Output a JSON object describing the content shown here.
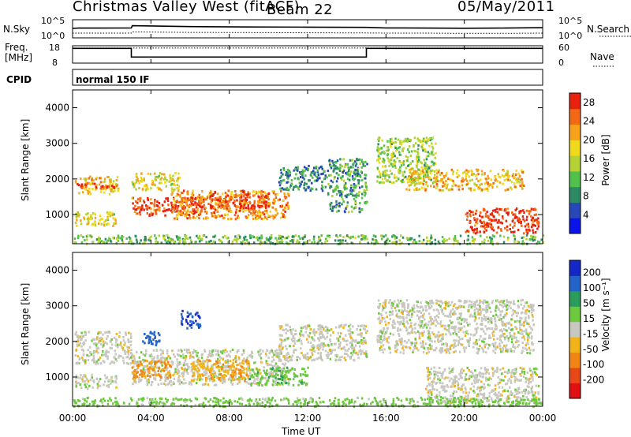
{
  "header": {
    "site": "Christmas Valley West (fitACF)",
    "beam": "Beam 22",
    "date": "05/May/2011"
  },
  "panels": {
    "nsky_label": "N.Sky",
    "nsearch_label": "N.Search",
    "freq_label_1": "Freq.",
    "freq_label_2": "[MHz]",
    "nave_label": "Nave",
    "cpid_label": "CPID",
    "cpid_value": "normal 150 IF",
    "noise_ticks_left": [
      "10^5",
      "10^0"
    ],
    "noise_ticks_right": [
      "10^5",
      "10^0"
    ],
    "freq_ticks": [
      "18",
      "8"
    ],
    "nave_ticks": [
      "60",
      "0"
    ],
    "ylabel": "Slant Range [km]",
    "y_ticks": [
      "4000",
      "3000",
      "2000",
      "1000"
    ],
    "x_ticks": [
      "00:00",
      "04:00",
      "08:00",
      "12:00",
      "16:00",
      "20:00",
      "00:00"
    ],
    "xlabel": "Time UT",
    "power_cb_label": "Power [dB]",
    "power_cb_ticks": [
      "28",
      "24",
      "20",
      "16",
      "12",
      "8",
      "4"
    ],
    "velocity_cb_label": "Velocity [m s⁻¹]",
    "velocity_cb_ticks": [
      "200",
      "100",
      "50",
      "15",
      "-15",
      "-50",
      "-100",
      "-200"
    ]
  },
  "chart_data": [
    {
      "type": "line",
      "name": "noise",
      "x_hours": [
        0,
        0.3,
        3,
        3.05,
        6,
        9,
        12,
        15,
        16,
        18,
        20,
        22,
        24
      ],
      "series": [
        {
          "name": "N.Sky",
          "values": [
            2.6,
            2.7,
            2.75,
            3.35,
            3.1,
            3.0,
            2.95,
            2.9,
            2.75,
            2.7,
            2.65,
            2.7,
            2.8
          ]
        },
        {
          "name": "N.Search",
          "values": [
            1.3,
            1.3,
            1.3,
            1.65,
            1.5,
            1.45,
            1.4,
            1.35,
            1.3,
            1.3,
            1.25,
            1.25,
            1.3
          ]
        }
      ]
    },
    {
      "type": "line",
      "name": "freq_nave",
      "x_hours": [
        0,
        3,
        3,
        15,
        15,
        24
      ],
      "series": [
        {
          "name": "Freq.",
          "values": [
            16.5,
            16.5,
            11.5,
            11.5,
            16.5,
            16.5
          ]
        },
        {
          "name": "Nave",
          "values": [
            52,
            52,
            52,
            52,
            52,
            52
          ]
        }
      ]
    },
    {
      "type": "heatmap",
      "name": "power",
      "xlim": [
        0,
        24
      ],
      "ylim": [
        180,
        4500
      ],
      "clim": [
        0,
        30
      ],
      "regions": [
        {
          "t": [
            0.1,
            2.3
          ],
          "r": [
            1600,
            2100
          ],
          "v": 20
        },
        {
          "t": [
            0.2,
            2.1
          ],
          "r": [
            1750,
            1900
          ],
          "v": 27
        },
        {
          "t": [
            0.1,
            2.2
          ],
          "r": [
            700,
            1100
          ],
          "v": 18
        },
        {
          "t": [
            3.0,
            6.5
          ],
          "r": [
            1000,
            1500
          ],
          "v": 27
        },
        {
          "t": [
            3.0,
            5.5
          ],
          "r": [
            1700,
            2200
          ],
          "v": 18
        },
        {
          "t": [
            5.0,
            11.0
          ],
          "r": [
            900,
            1700
          ],
          "v": 23
        },
        {
          "t": [
            6.0,
            10.0
          ],
          "r": [
            1200,
            1600
          ],
          "v": 27
        },
        {
          "t": [
            10.5,
            13.0
          ],
          "r": [
            1700,
            2400
          ],
          "v": 8
        },
        {
          "t": [
            13.0,
            15.0
          ],
          "r": [
            1100,
            2600
          ],
          "v": 10
        },
        {
          "t": [
            15.5,
            18.5
          ],
          "r": [
            1900,
            3200
          ],
          "v": 14
        },
        {
          "t": [
            17.0,
            23.0
          ],
          "r": [
            1700,
            2300
          ],
          "v": 20
        },
        {
          "t": [
            20.0,
            23.8
          ],
          "r": [
            500,
            1200
          ],
          "v": 28
        },
        {
          "t": [
            0.0,
            24.0
          ],
          "r": [
            200,
            450
          ],
          "v": 12
        }
      ]
    },
    {
      "type": "heatmap",
      "name": "velocity",
      "xlim": [
        0,
        24
      ],
      "ylim": [
        180,
        4500
      ],
      "clim": [
        -250,
        250
      ],
      "regions": [
        {
          "t": [
            0.1,
            3.0
          ],
          "r": [
            1400,
            2300
          ],
          "v": 0
        },
        {
          "t": [
            0.1,
            2.2
          ],
          "r": [
            700,
            1100
          ],
          "v": 0
        },
        {
          "t": [
            3.0,
            11.0
          ],
          "r": [
            800,
            1800
          ],
          "v": 0
        },
        {
          "t": [
            3.0,
            5.0
          ],
          "r": [
            1000,
            1500
          ],
          "v": -60
        },
        {
          "t": [
            3.5,
            4.5
          ],
          "r": [
            1900,
            2300
          ],
          "v": 180
        },
        {
          "t": [
            5.5,
            6.5
          ],
          "r": [
            2400,
            2900
          ],
          "v": 200
        },
        {
          "t": [
            6.0,
            9.0
          ],
          "r": [
            900,
            1500
          ],
          "v": -40
        },
        {
          "t": [
            9.0,
            12.0
          ],
          "r": [
            800,
            1300
          ],
          "v": 40
        },
        {
          "t": [
            10.5,
            15.0
          ],
          "r": [
            1500,
            2500
          ],
          "v": 0
        },
        {
          "t": [
            15.5,
            23.5
          ],
          "r": [
            1700,
            3200
          ],
          "v": 0
        },
        {
          "t": [
            18.0,
            23.8
          ],
          "r": [
            300,
            1300
          ],
          "v": 0
        },
        {
          "t": [
            0.0,
            24.0
          ],
          "r": [
            200,
            450
          ],
          "v": 30
        }
      ]
    }
  ]
}
